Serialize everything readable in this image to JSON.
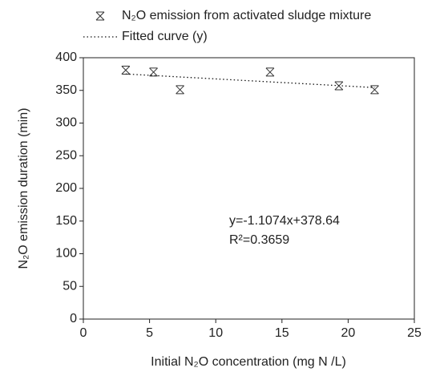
{
  "chart_data": {
    "type": "scatter",
    "xlabel": "Initial N₂O concentration (mg N /L)",
    "ylabel": "N₂O emission duration (min)",
    "series": [
      {
        "name": "N₂O emission from activated sludge mixture",
        "color": "#333333",
        "kind": "marker",
        "x": [
          3.2,
          5.3,
          7.3,
          14.1,
          19.3,
          22.0
        ],
        "values": [
          381,
          378,
          351,
          378,
          357,
          351
        ]
      },
      {
        "name": "Fitted curve (y)",
        "color": "#111111",
        "kind": "dotted-line",
        "x": [
          3.2,
          22.0
        ],
        "values": [
          375.1,
          354.3
        ]
      }
    ],
    "annotations": [
      "y=-1.1074x+378.64",
      "R²=0.3659"
    ],
    "xlim": [
      0,
      25
    ],
    "xticks": [
      0,
      5,
      10,
      15,
      20,
      25
    ],
    "ylim": [
      0,
      400
    ],
    "yticks": [
      0,
      50,
      100,
      150,
      200,
      250,
      300,
      350,
      400
    ],
    "grid": false
  }
}
